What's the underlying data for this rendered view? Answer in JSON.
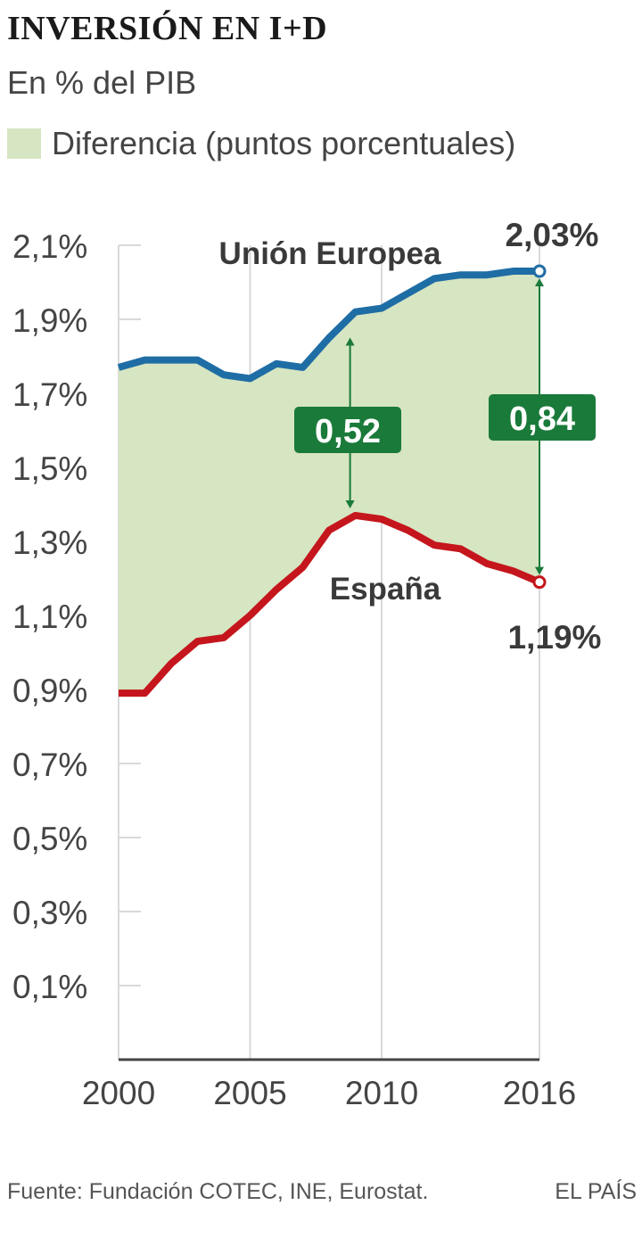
{
  "header": {
    "title": "INVERSIÓN EN I+D",
    "subtitle": "En % del PIB",
    "legend_label": "Diferencia (puntos porcentuales)"
  },
  "footer": {
    "source": "Fuente: Fundación COTEC, INE, Eurostat.",
    "brand": "EL PAÍS"
  },
  "chart_data": {
    "type": "line",
    "x": [
      2000,
      2001,
      2002,
      2003,
      2004,
      2005,
      2006,
      2007,
      2008,
      2009,
      2010,
      2011,
      2012,
      2013,
      2014,
      2015,
      2016
    ],
    "series": [
      {
        "name": "Unión Europea",
        "color": "#1f6da5",
        "values": [
          1.77,
          1.79,
          1.79,
          1.79,
          1.75,
          1.74,
          1.78,
          1.77,
          1.85,
          1.92,
          1.93,
          1.97,
          2.01,
          2.02,
          2.02,
          2.03,
          2.03
        ]
      },
      {
        "name": "España",
        "color": "#c4161c",
        "values": [
          0.89,
          0.89,
          0.97,
          1.03,
          1.04,
          1.1,
          1.17,
          1.23,
          1.33,
          1.37,
          1.36,
          1.33,
          1.29,
          1.28,
          1.24,
          1.22,
          1.19
        ]
      }
    ],
    "fill_between": {
      "label": "Diferencia (puntos porcentuales)",
      "color": "#d6e5c2"
    },
    "y_ticks": [
      "2,1%",
      "1,9%",
      "1,7%",
      "1,5%",
      "1,3%",
      "1,1%",
      "0,9%",
      "0,7%",
      "0,5%",
      "0,3%",
      "0,1%"
    ],
    "y_tick_values": [
      2.1,
      1.9,
      1.7,
      1.5,
      1.3,
      1.1,
      0.9,
      0.7,
      0.5,
      0.3,
      0.1
    ],
    "x_ticks": [
      "2000",
      "2005",
      "2010",
      "2016"
    ],
    "x_tick_values": [
      2000,
      2005,
      2010,
      2016
    ],
    "ylim": [
      -0.1,
      2.1
    ],
    "xlim": [
      2000,
      2016
    ],
    "grid": true,
    "annotations": {
      "eu_end_label": "2,03%",
      "es_end_label": "1,19%",
      "gap_labels": [
        {
          "year": 2008.8,
          "text": "0,52",
          "eu": 1.87,
          "es": 1.37
        },
        {
          "year": 2016,
          "text": "0,84",
          "eu": 2.03,
          "es": 1.19
        }
      ],
      "accent_color": "#1a7a3a"
    }
  }
}
